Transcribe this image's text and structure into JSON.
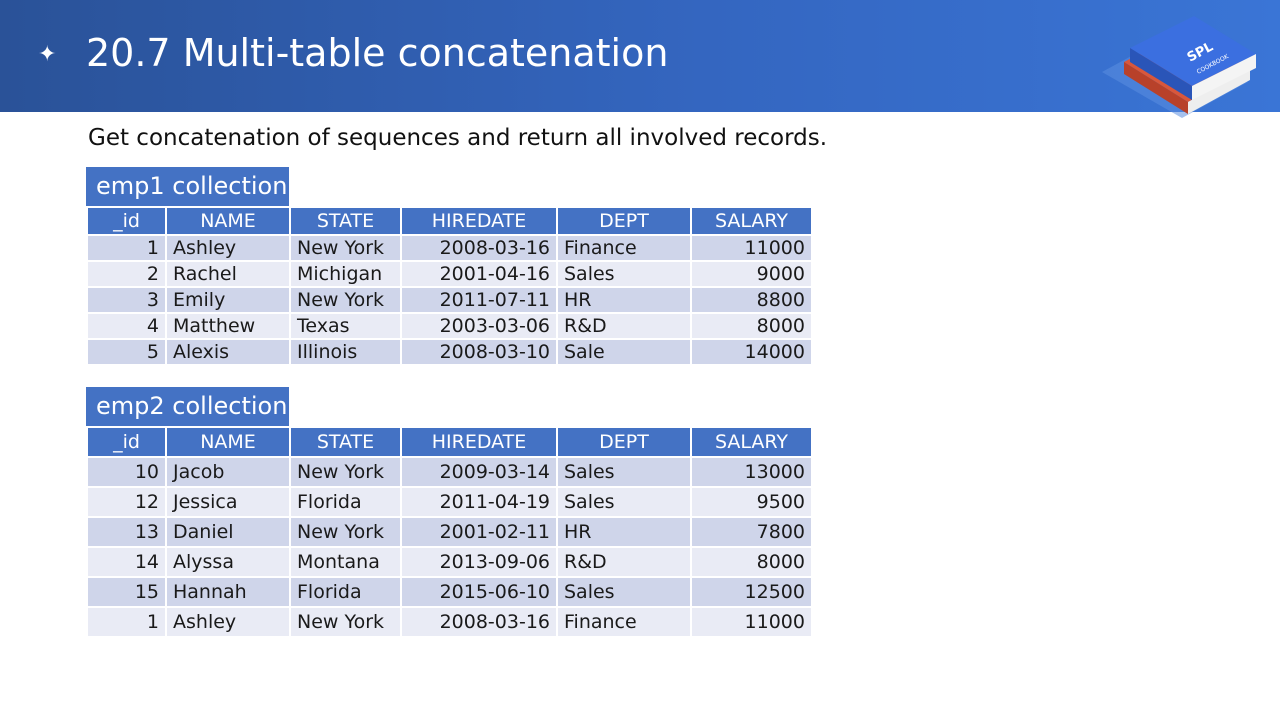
{
  "slide": {
    "title": "20.7 Multi-table concatenation",
    "subtitle": "Get concatenation of sequences and return all involved records.",
    "logo_text": "SPL",
    "logo_subtext": "COOKBOOK"
  },
  "colors": {
    "header_start": "#2a5298",
    "header_end": "#3a75d6",
    "table_header": "#4472c4",
    "row_odd": "#cfd5ea",
    "row_even": "#e9ebf5"
  },
  "columns": [
    "_id",
    "NAME",
    "STATE",
    "HIREDATE",
    "DEPT",
    "SALARY"
  ],
  "emp1": {
    "caption": "emp1 collection:",
    "rows": [
      [
        "1",
        "Ashley",
        "New York",
        "2008-03-16",
        "Finance",
        "11000"
      ],
      [
        "2",
        "Rachel",
        "Michigan",
        "2001-04-16",
        "Sales",
        "9000"
      ],
      [
        "3",
        "Emily",
        "New York",
        "2011-07-11",
        "HR",
        "8800"
      ],
      [
        "4",
        "Matthew",
        "Texas",
        "2003-03-06",
        "R&D",
        "8000"
      ],
      [
        "5",
        "Alexis",
        "Illinois",
        "2008-03-10",
        "Sale",
        "14000"
      ]
    ]
  },
  "emp2": {
    "caption": "emp2 collection:",
    "rows": [
      [
        "10",
        "Jacob",
        "New York",
        "2009-03-14",
        "Sales",
        "13000"
      ],
      [
        "12",
        "Jessica",
        "Florida",
        "2011-04-19",
        "Sales",
        "9500"
      ],
      [
        "13",
        "Daniel",
        "New York",
        "2001-02-11",
        "HR",
        "7800"
      ],
      [
        "14",
        "Alyssa",
        "Montana",
        "2013-09-06",
        "R&D",
        "8000"
      ],
      [
        "15",
        "Hannah",
        "Florida",
        "2015-06-10",
        "Sales",
        "12500"
      ],
      [
        "1",
        "Ashley",
        "New York",
        "2008-03-16",
        "Finance",
        "11000"
      ]
    ]
  }
}
